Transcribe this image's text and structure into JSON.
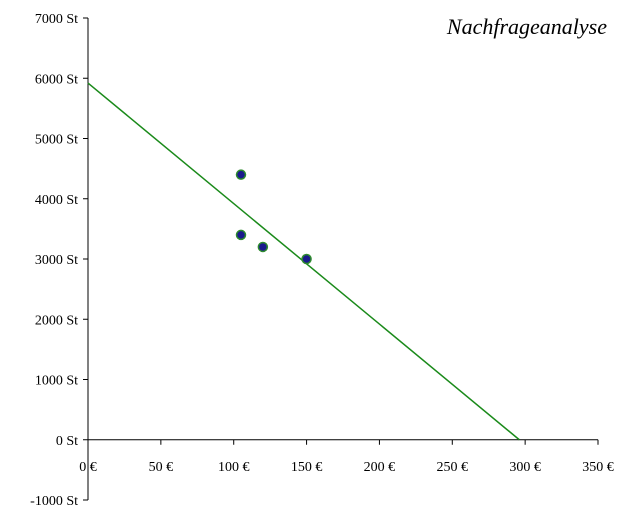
{
  "chart_data": {
    "type": "scatter",
    "title": "Nachfrageanalyse",
    "xlabel": "",
    "ylabel": "",
    "xlim": [
      0,
      350
    ],
    "ylim": [
      -1000,
      7000
    ],
    "x_ticks": [
      {
        "value": 0,
        "label": "0 €"
      },
      {
        "value": 50,
        "label": "50 €"
      },
      {
        "value": 100,
        "label": "100 €"
      },
      {
        "value": 150,
        "label": "150 €"
      },
      {
        "value": 200,
        "label": "200 €"
      },
      {
        "value": 250,
        "label": "250 €"
      },
      {
        "value": 300,
        "label": "300 €"
      },
      {
        "value": 350,
        "label": "350 €"
      }
    ],
    "y_ticks": [
      {
        "value": 7000,
        "label": "7000 St"
      },
      {
        "value": 6000,
        "label": "6000 St"
      },
      {
        "value": 5000,
        "label": "5000 St"
      },
      {
        "value": 4000,
        "label": "4000 St"
      },
      {
        "value": 3000,
        "label": "3000 St"
      },
      {
        "value": 2000,
        "label": "2000 St"
      },
      {
        "value": 1000,
        "label": "1000 St"
      },
      {
        "value": 0,
        "label": "0 St"
      },
      {
        "value": -1000,
        "label": "-1000 St"
      }
    ],
    "grid": false,
    "series": [
      {
        "kind": "scatter",
        "color": "#1a1a8c",
        "edge_color": "#2e8b2e",
        "points": [
          {
            "x": 105,
            "y": 4400
          },
          {
            "x": 105,
            "y": 3400
          },
          {
            "x": 120,
            "y": 3200
          },
          {
            "x": 150,
            "y": 3000
          }
        ]
      },
      {
        "kind": "line",
        "color": "#1a8a1a",
        "points": [
          {
            "x": 0,
            "y": 5920
          },
          {
            "x": 296,
            "y": 0
          }
        ]
      }
    ]
  }
}
